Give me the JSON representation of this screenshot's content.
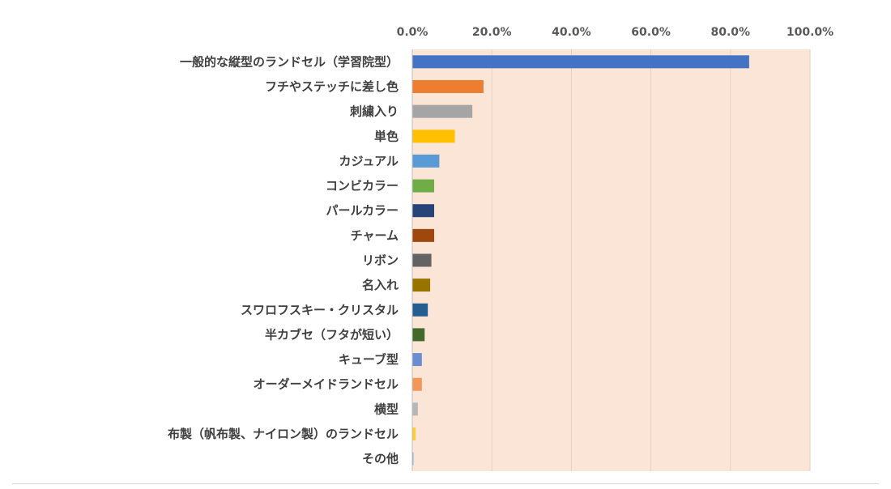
{
  "chart_data": {
    "type": "bar",
    "orientation": "horizontal",
    "title": "",
    "xlabel": "",
    "ylabel": "",
    "xlim": [
      0,
      100
    ],
    "x_tick_labels": [
      "0.0%",
      "20.0%",
      "40.0%",
      "60.0%",
      "80.0%",
      "100.0%"
    ],
    "x_ticks": [
      0,
      20,
      40,
      60,
      80,
      100
    ],
    "x_axis_position": "top",
    "grid": true,
    "legend": "none",
    "plot_background": "#fbe5d6",
    "categories": [
      "一般的な縦型のランドセル（学習院型）",
      "フチやステッチに差し色",
      "刺繍入り",
      "単色",
      "カジュアル",
      "コンビカラー",
      "パールカラー",
      "チャーム",
      "リボン",
      "名入れ",
      "スワロフスキー・クリスタル",
      "半カブセ（フタが短い）",
      "キューブ型",
      "オーダーメイドランドセル",
      "横型",
      "布製（帆布製、ナイロン製）のランドセル",
      "その他"
    ],
    "values": [
      84.7,
      17.9,
      15.1,
      10.7,
      6.8,
      5.5,
      5.5,
      5.5,
      4.8,
      4.5,
      3.9,
      3.1,
      2.4,
      2.4,
      1.4,
      0.8,
      0.3
    ],
    "colors": [
      "#4472c4",
      "#ed7d31",
      "#a5a5a5",
      "#ffc000",
      "#5b9bd5",
      "#70ad47",
      "#264478",
      "#9e480e",
      "#636363",
      "#997300",
      "#255e91",
      "#43682b",
      "#698ed0",
      "#f1975a",
      "#b7b7b7",
      "#ffcd33",
      "#7cafdd"
    ]
  }
}
